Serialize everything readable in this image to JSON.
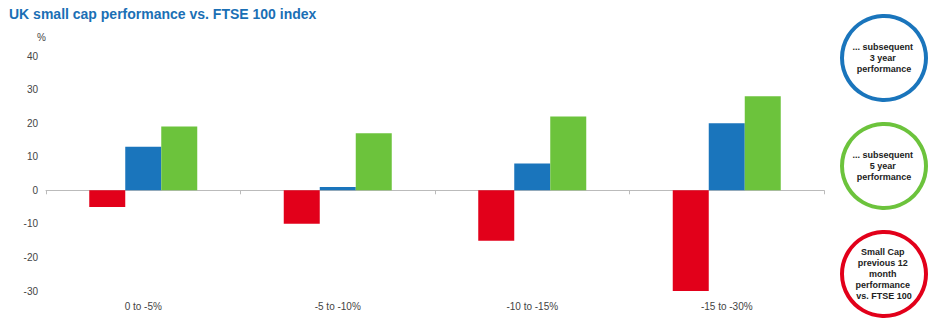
{
  "chart_data": {
    "type": "bar",
    "title": "UK small cap performance vs. FTSE 100 index",
    "ylabel": "%",
    "categories": [
      "0 to -5%",
      "-5 to -10%",
      "-10 to -15%",
      "-15 to -30%"
    ],
    "series": [
      {
        "name": "Small Cap previous 12 month performance vs. FTSE 100",
        "color": "#e2001a",
        "values": [
          -5,
          -10,
          -15,
          -30
        ]
      },
      {
        "name": "... subsequent 3 year performance",
        "color": "#1a75bc",
        "values": [
          13,
          1,
          8,
          20
        ]
      },
      {
        "name": "... subsequent 5 year performance",
        "color": "#6cc33c",
        "values": [
          19,
          17,
          22,
          28
        ]
      }
    ],
    "ylim": [
      -30,
      40
    ],
    "yticks": [
      -30,
      -20,
      -10,
      0,
      10,
      20,
      30,
      40
    ],
    "grid": false,
    "legend": "right"
  }
}
